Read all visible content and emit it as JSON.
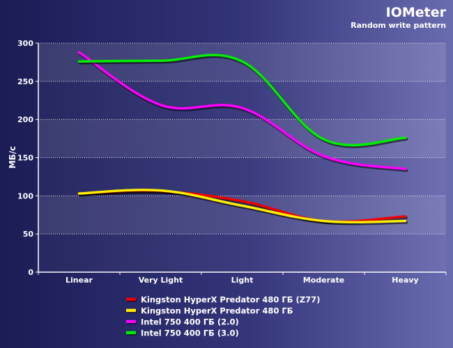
{
  "chart_data": {
    "type": "line",
    "title": "IOMeter",
    "subtitle": "Random write pattern",
    "xlabel": "",
    "ylabel": "МБ/с",
    "categories": [
      "Linear",
      "Very Light",
      "Light",
      "Moderate",
      "Heavy"
    ],
    "ylim": [
      0,
      300
    ],
    "yticks": [
      0,
      50,
      100,
      150,
      200,
      250,
      300
    ],
    "grid": true,
    "legend_position": "bottom",
    "series": [
      {
        "name": "Kingston HyperX Predator 480 ГБ (Z77)",
        "color": "#ee0000",
        "values": [
          103,
          106,
          93,
          67,
          73
        ]
      },
      {
        "name": "Kingston HyperX Predator 480 ГБ",
        "color": "#ffee00",
        "values": [
          103,
          107,
          87,
          67,
          67
        ]
      },
      {
        "name": "Intel 750 400 ГБ (2.0)",
        "color": "#ff00ff",
        "values": [
          288,
          219,
          215,
          152,
          135
        ]
      },
      {
        "name": "Intel 750 400 ГБ (3.0)",
        "color": "#00ee00",
        "values": [
          276,
          277,
          276,
          174,
          176
        ]
      }
    ]
  }
}
